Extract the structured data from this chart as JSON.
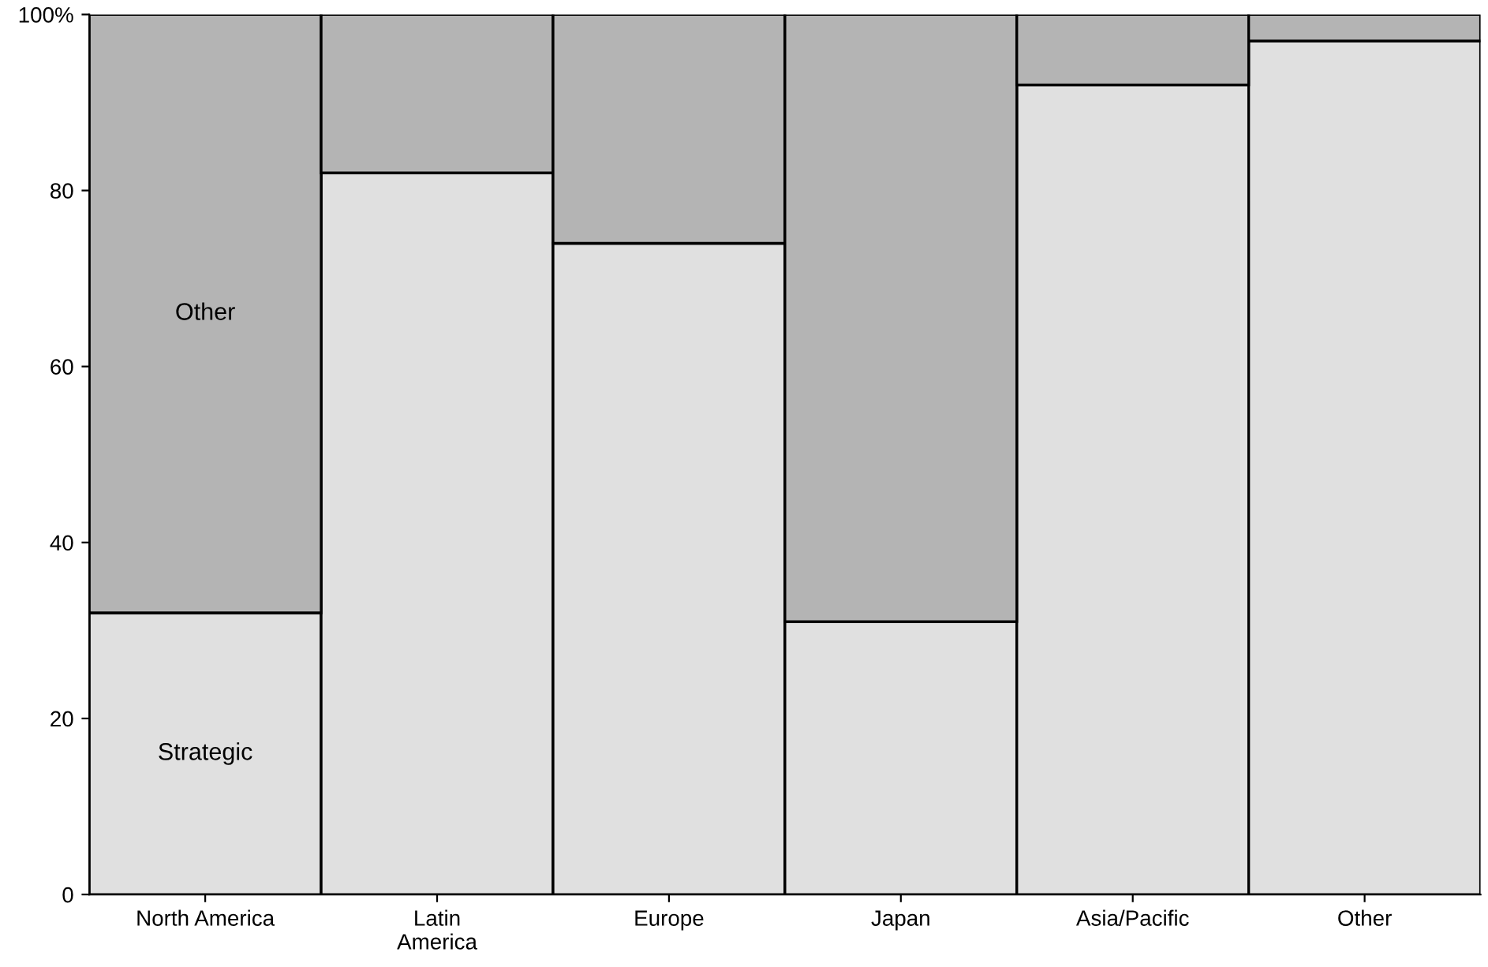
{
  "chart_data": {
    "type": "bar",
    "stacked": true,
    "categories": [
      "North America",
      "Latin\nAmerica",
      "Europe",
      "Japan",
      "Asia/Pacific",
      "Other"
    ],
    "series": [
      {
        "name": "Strategic",
        "color": "#e0e0e0",
        "values": [
          32,
          82,
          74,
          31,
          92,
          97
        ]
      },
      {
        "name": "Other",
        "color": "#b4b4b4",
        "values": [
          68,
          18,
          26,
          69,
          8,
          3
        ]
      }
    ],
    "ylim": [
      0,
      100
    ],
    "yticks": [
      0,
      20,
      40,
      60,
      80,
      {
        "value": 100,
        "label": "100%"
      }
    ],
    "grid": false
  }
}
